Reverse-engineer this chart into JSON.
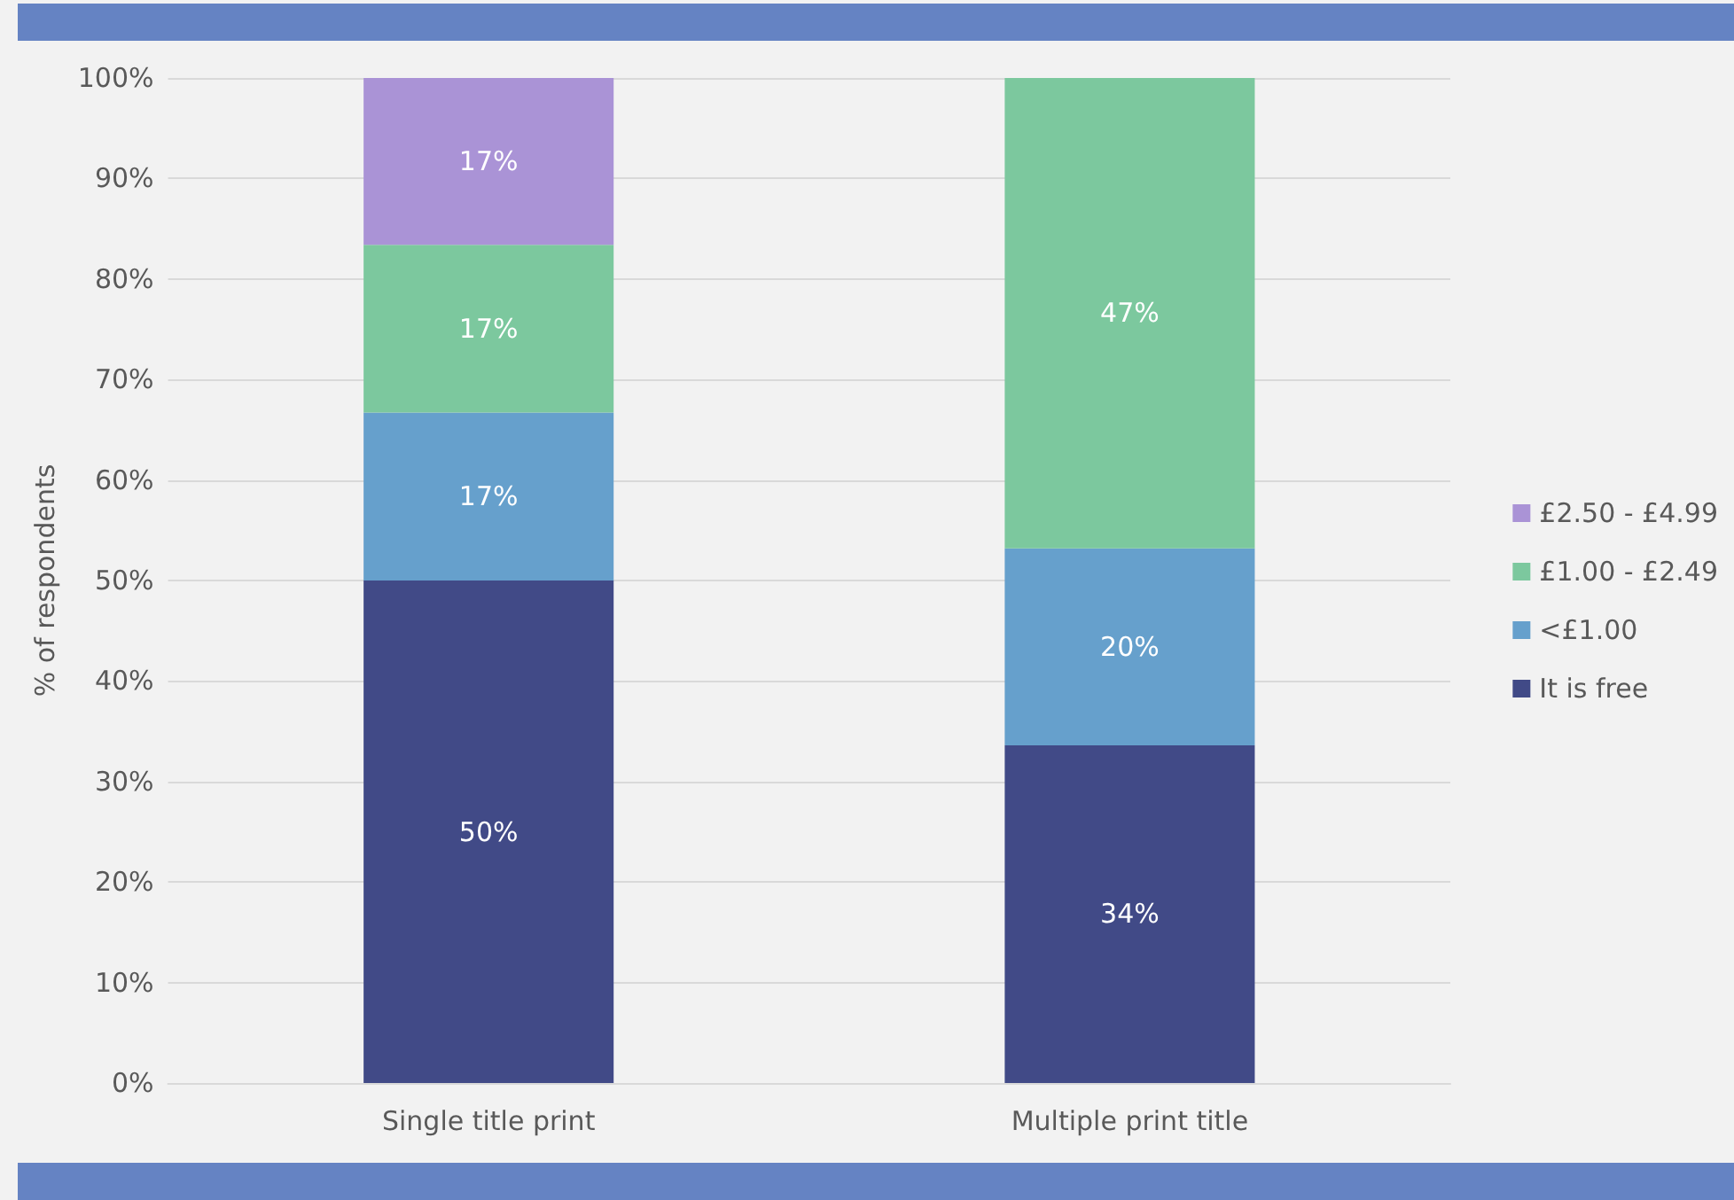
{
  "chart_data": {
    "type": "bar",
    "stacked": true,
    "ylabel": "% of respondents",
    "categories": [
      "Single title print",
      "Multiple print title"
    ],
    "series": [
      {
        "name": "It is free",
        "color": "#414a87",
        "values": [
          50,
          33.6
        ],
        "value_labels": [
          "50%",
          "34%"
        ]
      },
      {
        "name": "<£1.00",
        "color": "#66a0cc",
        "values": [
          16.7,
          19.6
        ],
        "value_labels": [
          "17%",
          "20%"
        ]
      },
      {
        "name": "£1.00 - £2.49",
        "color": "#7cc89e",
        "values": [
          16.7,
          46.8
        ],
        "value_labels": [
          "17%",
          "47%"
        ]
      },
      {
        "name": "£2.50 - £4.99",
        "color": "#aa93d6",
        "values": [
          16.6,
          null
        ],
        "value_labels": [
          "17%",
          null
        ]
      }
    ],
    "ylim": [
      0,
      100
    ],
    "yticks": [
      {
        "value": 0,
        "label": "0%"
      },
      {
        "value": 10,
        "label": "10%"
      },
      {
        "value": 20,
        "label": "20%"
      },
      {
        "value": 30,
        "label": "30%"
      },
      {
        "value": 40,
        "label": "40%"
      },
      {
        "value": 50,
        "label": "50%"
      },
      {
        "value": 60,
        "label": "60%"
      },
      {
        "value": 70,
        "label": "70%"
      },
      {
        "value": 80,
        "label": "80%"
      },
      {
        "value": 90,
        "label": "90%"
      },
      {
        "value": 100,
        "label": "100%"
      }
    ],
    "grid": "y",
    "legend": "right"
  }
}
